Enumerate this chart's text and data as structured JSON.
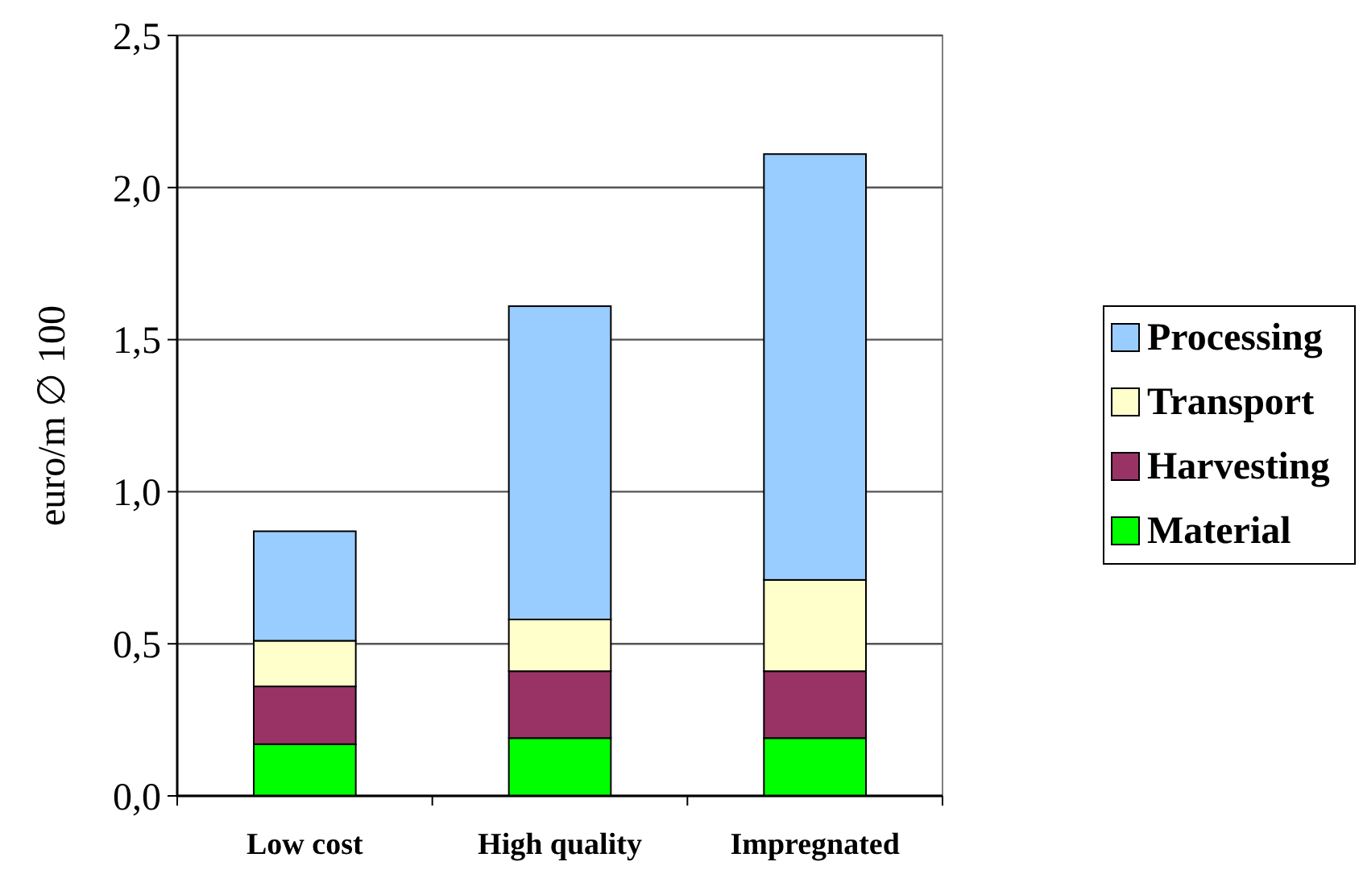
{
  "chart_data": {
    "type": "bar",
    "stacked": true,
    "ylabel": "euro/m ∅ 100",
    "categories": [
      "Low cost",
      "High quality",
      "Impregnated"
    ],
    "series": [
      {
        "name": "Material",
        "color": "#00ff00",
        "values": [
          0.17,
          0.19,
          0.19
        ]
      },
      {
        "name": "Harvesting",
        "color": "#993366",
        "values": [
          0.19,
          0.22,
          0.22
        ]
      },
      {
        "name": "Transport",
        "color": "#ffffcc",
        "values": [
          0.15,
          0.17,
          0.3
        ]
      },
      {
        "name": "Processing",
        "color": "#99ccff",
        "values": [
          0.36,
          1.03,
          1.4
        ]
      }
    ],
    "ylim": [
      0,
      2.5
    ],
    "yticks": [
      {
        "value": 0,
        "label": "0,0"
      },
      {
        "value": 0.5,
        "label": "0,5"
      },
      {
        "value": 1,
        "label": "1,0"
      },
      {
        "value": 1.5,
        "label": "1,5"
      },
      {
        "value": 2,
        "label": "2,0"
      },
      {
        "value": 2.5,
        "label": "2,5"
      }
    ],
    "grid": "y",
    "legend": "right"
  }
}
